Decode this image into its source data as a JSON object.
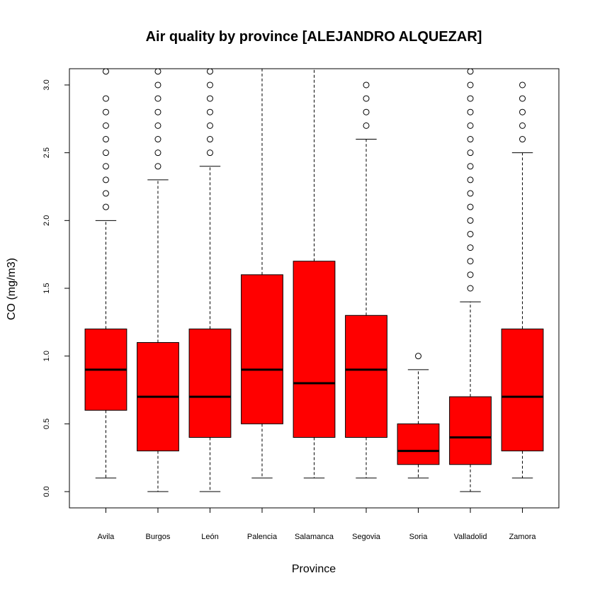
{
  "chart_data": {
    "type": "box",
    "title": "Air quality by province [ALEJANDRO ALQUEZAR]",
    "xlabel": "Province",
    "ylabel": "CO (mg/m3)",
    "ylim": [
      -0.12,
      3.12
    ],
    "yticks": [
      "0.0",
      "0.5",
      "1.0",
      "1.5",
      "2.0",
      "2.5",
      "3.0"
    ],
    "box_color": "#ff0000",
    "grid": false,
    "categories": [
      "Avila",
      "Burgos",
      "León",
      "Palencia",
      "Salamanca",
      "Segovia",
      "Soria",
      "Valladolid",
      "Zamora"
    ],
    "boxes": [
      {
        "name": "Avila",
        "min": 0.1,
        "q1": 0.6,
        "median": 0.9,
        "q3": 1.2,
        "max": 2.0,
        "outliers": [
          2.1,
          2.2,
          2.3,
          2.4,
          2.5,
          2.6,
          2.7,
          2.8,
          2.9,
          3.1
        ]
      },
      {
        "name": "Burgos",
        "min": 0.0,
        "q1": 0.3,
        "median": 0.7,
        "q3": 1.1,
        "max": 2.3,
        "outliers": [
          2.4,
          2.5,
          2.6,
          2.7,
          2.8,
          2.9,
          3.0,
          3.1
        ]
      },
      {
        "name": "León",
        "min": 0.0,
        "q1": 0.4,
        "median": 0.7,
        "q3": 1.2,
        "max": 2.4,
        "outliers": [
          2.5,
          2.6,
          2.7,
          2.8,
          2.9,
          3.0,
          3.1
        ]
      },
      {
        "name": "Palencia",
        "min": 0.1,
        "q1": 0.5,
        "median": 0.9,
        "q3": 1.6,
        "max": 3.2,
        "outliers": []
      },
      {
        "name": "Salamanca",
        "min": 0.1,
        "q1": 0.4,
        "median": 0.8,
        "q3": 1.7,
        "max": 3.2,
        "outliers": []
      },
      {
        "name": "Segovia",
        "min": 0.1,
        "q1": 0.4,
        "median": 0.9,
        "q3": 1.3,
        "max": 2.6,
        "outliers": [
          2.7,
          2.8,
          2.9,
          3.0
        ]
      },
      {
        "name": "Soria",
        "min": 0.1,
        "q1": 0.2,
        "median": 0.3,
        "q3": 0.5,
        "max": 0.9,
        "outliers": [
          1.0
        ]
      },
      {
        "name": "Valladolid",
        "min": 0.0,
        "q1": 0.2,
        "median": 0.4,
        "q3": 0.7,
        "max": 1.4,
        "outliers": [
          1.5,
          1.6,
          1.7,
          1.8,
          1.9,
          2.0,
          2.1,
          2.2,
          2.3,
          2.4,
          2.5,
          2.6,
          2.7,
          2.8,
          2.9,
          3.0,
          3.1
        ]
      },
      {
        "name": "Zamora",
        "min": 0.1,
        "q1": 0.3,
        "median": 0.7,
        "q3": 1.2,
        "max": 2.5,
        "outliers": [
          2.6,
          2.7,
          2.8,
          2.9,
          3.0
        ]
      }
    ]
  }
}
